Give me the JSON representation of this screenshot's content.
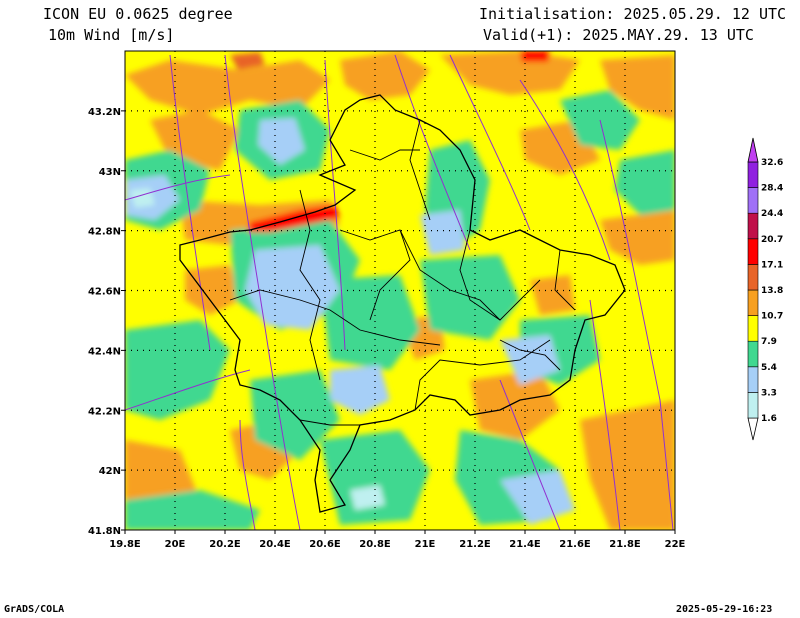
{
  "header": {
    "model": "ICON EU 0.0625 degree",
    "field": "10m Wind [m/s]",
    "init": "Initialisation: 2025.05.29. 12 UTC",
    "valid": "Valid(+1): 2025.MAY.29. 13 UTC"
  },
  "footer": {
    "left": "GrADS/COLA",
    "right": "2025-05-29-16:23"
  },
  "map": {
    "lon_range": [
      19.8,
      22.0
    ],
    "lat_range": [
      41.8,
      43.4
    ],
    "x_ticks": [
      "19.8E",
      "20E",
      "20.2E",
      "20.4E",
      "20.6E",
      "20.8E",
      "21E",
      "21.2E",
      "21.4E",
      "21.6E",
      "21.8E",
      "22E"
    ],
    "y_ticks": [
      "41.8N",
      "42N",
      "42.2N",
      "42.4N",
      "42.6N",
      "42.8N",
      "43N",
      "43.2N"
    ],
    "grid": true
  },
  "legend": {
    "labels": [
      "1.6",
      "3.3",
      "5.4",
      "7.9",
      "10.7",
      "13.8",
      "17.1",
      "20.7",
      "24.4",
      "28.4",
      "32.6"
    ],
    "colors": [
      "#ffffff",
      "#bff0f0",
      "#a6cff7",
      "#40d890",
      "#ffff00",
      "#f7a020",
      "#e86428",
      "#ff0000",
      "#c0104a",
      "#a070f7",
      "#9020e0",
      "#c040f0"
    ]
  }
}
